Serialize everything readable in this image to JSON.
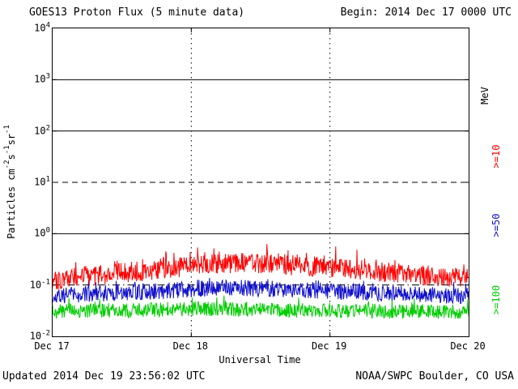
{
  "header": {
    "title": "GOES13 Proton Flux (5 minute data)",
    "begin": "Begin: 2014 Dec 17 0000 UTC"
  },
  "footer": {
    "updated": "Updated 2014 Dec 19 23:56:02 UTC",
    "source": "NOAA/SWPC Boulder, CO USA"
  },
  "axes": {
    "xlabel": "Universal Time",
    "y_base": "10",
    "ylabel_segments": [
      {
        "text": "Particles cm"
      },
      {
        "sup": "-2"
      },
      {
        "text": "s"
      },
      {
        "sup": "-1"
      },
      {
        "text": "sr"
      },
      {
        "sup": "-1"
      }
    ]
  },
  "right_axis_labels": [
    {
      "text": "MeV",
      "color": "#000000"
    },
    {
      "text": ">=10",
      "color": "#ff0000"
    },
    {
      "text": ">=50",
      "color": "#1010cc"
    },
    {
      "text": ">=100",
      "color": "#00cc00"
    }
  ],
  "chart_data": {
    "type": "line",
    "title": "GOES13 Proton Flux (5 minute data)",
    "begin_label": "Begin: 2014 Dec 17 0000 UTC",
    "xlabel": "Universal Time",
    "ylabel": "Particles cm^-2 s^-1 sr^-1",
    "y_scale": "log10",
    "ylim": [
      0.01,
      10000
    ],
    "y_tick_exponents": [
      4,
      3,
      2,
      1,
      0,
      -1,
      -2
    ],
    "x_range_hours": [
      0,
      72
    ],
    "x_tick_hours": [
      0,
      24,
      48,
      72
    ],
    "x_tick_labels": [
      "Dec 17",
      "Dec 18",
      "Dec 19",
      "Dec 20"
    ],
    "gridlines": {
      "horizontal": [
        {
          "value": 1000,
          "log10": 3,
          "style": "solid"
        },
        {
          "value": 100,
          "log10": 2,
          "style": "solid"
        },
        {
          "value": 10,
          "log10": 1,
          "style": "dashed"
        },
        {
          "value": 1,
          "log10": 0,
          "style": "solid"
        },
        {
          "value": 0.1,
          "log10": -1,
          "style": "dashdot"
        }
      ],
      "vertical_hours": [
        24,
        48
      ],
      "vertical_style": "dotted"
    },
    "legend_position": "right",
    "sample_interval_min": 5,
    "mean_sample_spacing_hours": 3,
    "series": [
      {
        "name": ">=10 MeV",
        "color": "#ff0000",
        "approx_flux_range": [
          0.08,
          0.55
        ],
        "mean_log10_flux_3h": [
          -0.9,
          -0.86,
          -0.82,
          -0.79,
          -0.76,
          -0.73,
          -0.7,
          -0.66,
          -0.63,
          -0.6,
          -0.58,
          -0.57,
          -0.58,
          -0.6,
          -0.62,
          -0.64,
          -0.66,
          -0.69,
          -0.72,
          -0.74,
          -0.77,
          -0.8,
          -0.83,
          -0.86,
          -0.88
        ],
        "noise_log10": 0.2,
        "spike_log10": 0.25,
        "spike_prob": 0.08,
        "seed": 101
      },
      {
        "name": ">=50 MeV",
        "color": "#1010cc",
        "approx_flux_range": [
          0.04,
          0.17
        ],
        "mean_log10_flux_3h": [
          -1.22,
          -1.2,
          -1.18,
          -1.16,
          -1.15,
          -1.13,
          -1.12,
          -1.1,
          -1.08,
          -1.07,
          -1.06,
          -1.06,
          -1.07,
          -1.08,
          -1.09,
          -1.1,
          -1.12,
          -1.13,
          -1.14,
          -1.16,
          -1.17,
          -1.18,
          -1.19,
          -1.2,
          -1.21
        ],
        "noise_log10": 0.16,
        "spike_log10": 0.18,
        "spike_prob": 0.06,
        "seed": 202
      },
      {
        "name": ">=100 MeV",
        "color": "#00cc00",
        "approx_flux_range": [
          0.015,
          0.06
        ],
        "mean_log10_flux_3h": [
          -1.52,
          -1.51,
          -1.5,
          -1.49,
          -1.5,
          -1.49,
          -1.48,
          -1.47,
          -1.47,
          -1.46,
          -1.47,
          -1.48,
          -1.48,
          -1.49,
          -1.5,
          -1.49,
          -1.5,
          -1.51,
          -1.5,
          -1.51,
          -1.52,
          -1.51,
          -1.52,
          -1.52,
          -1.53
        ],
        "noise_log10": 0.14,
        "spike_log10": 0.16,
        "spike_prob": 0.06,
        "seed": 303
      }
    ]
  }
}
